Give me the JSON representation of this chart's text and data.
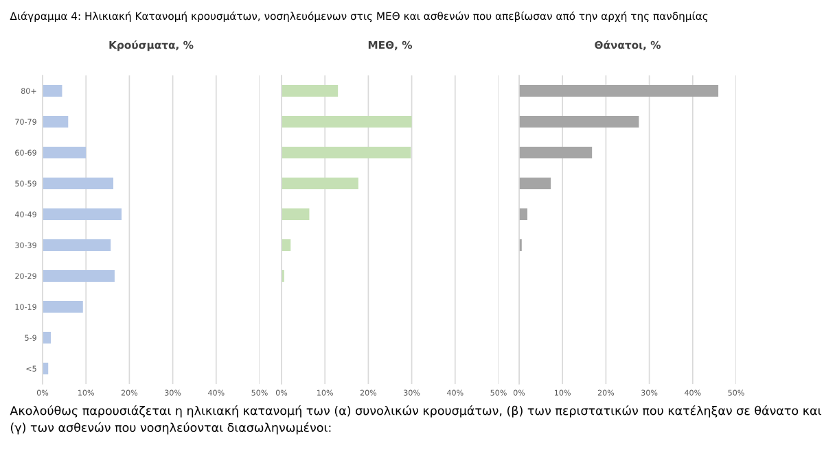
{
  "chart_data": [
    {
      "type": "bar",
      "orientation": "horizontal",
      "title": "Κρούσματα, %",
      "categories": [
        "80+",
        "70-79",
        "60-69",
        "50-59",
        "40-49",
        "30-39",
        "20-29",
        "10-19",
        "5-9",
        "<5"
      ],
      "values": [
        4.5,
        5.9,
        10,
        16.3,
        18.2,
        15.7,
        16.6,
        9.3,
        1.9,
        1.3
      ],
      "color": "#b4c7e7",
      "xlim": [
        0,
        50
      ],
      "xticks": [
        {
          "value": 0,
          "label": "0%"
        },
        {
          "value": 10,
          "label": "10%"
        },
        {
          "value": 20,
          "label": "20%"
        },
        {
          "value": 30,
          "label": "30%"
        },
        {
          "value": 40,
          "label": "40%"
        },
        {
          "value": 50,
          "label": "50%"
        }
      ],
      "grid": "x",
      "annotations": [
        "Διάγραμμα 4: Ηλικιακή Κατανομή κρουσμάτων, νοσηλευόμενων στις ΜΕΘ και ασθενών που απεβίωσαν από την αρχή της πανδημίας",
        "Ακολούθως παρουσιάζεται η ηλικιακή κατανομή των (α) συνολικών κρουσμάτων, (β) των περιστατικών που κατέληξαν σε θάνατο και (γ) των ασθενών που νοσηλεύονται διασωληνωμένοι:"
      ]
    },
    {
      "type": "bar",
      "orientation": "horizontal",
      "title": "ΜΕΘ, %",
      "categories": [
        null,
        null,
        null,
        null,
        null,
        null,
        null,
        null,
        null,
        null
      ],
      "values": [
        13.0,
        30.0,
        29.8,
        17.7,
        6.4,
        2.1,
        0.6,
        null,
        0,
        0
      ],
      "color": "#c5e0b4",
      "xlim": [
        0,
        50
      ],
      "xticks": [
        {
          "value": 0,
          "label": "0%"
        },
        {
          "value": 10,
          "label": "10%"
        },
        {
          "value": 20,
          "label": "20%"
        },
        {
          "value": 30,
          "label": "30%"
        },
        {
          "value": 40,
          "label": "40%"
        },
        {
          "value": 50,
          "label": "50%"
        }
      ],
      "grid": "x",
      "tick_labels": "x"
    },
    {
      "type": "bar",
      "orientation": "horizontal",
      "title": "Θάνατοι, %",
      "categories": [
        null,
        null,
        null,
        null,
        null,
        null,
        null,
        null,
        null,
        null
      ],
      "values": [
        45.9,
        27.6,
        16.8,
        7.3,
        1.9,
        0.6,
        null,
        0,
        0,
        0
      ],
      "color": "#a5a5a5",
      "xlim": [
        0,
        50
      ],
      "xticks": [
        {
          "value": 0,
          "label": "0%"
        },
        {
          "value": 10,
          "label": "10%"
        },
        {
          "value": 20,
          "label": "20%"
        },
        {
          "value": 30,
          "label": "30%"
        },
        {
          "value": 40,
          "label": "40%"
        },
        {
          "value": 50,
          "label": "50%"
        }
      ],
      "grid": "x",
      "tick_labels": "x"
    }
  ]
}
